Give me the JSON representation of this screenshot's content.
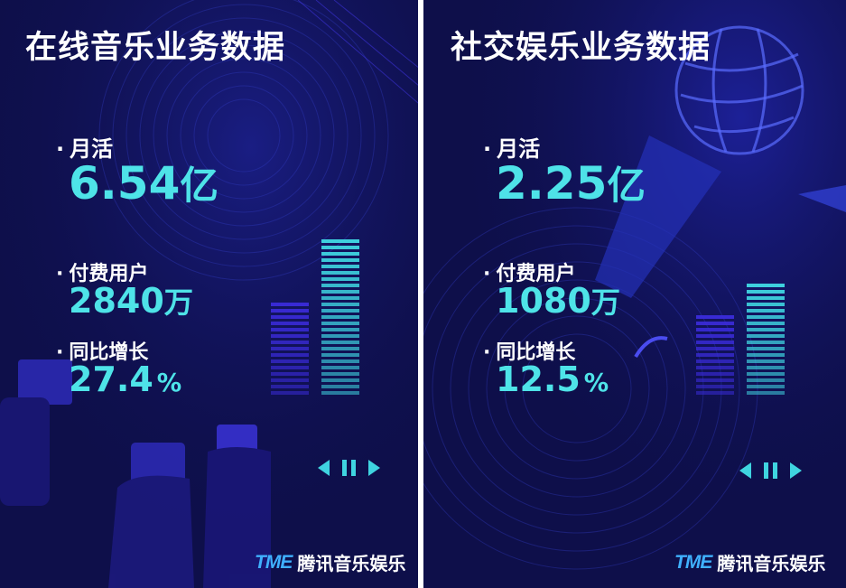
{
  "panels": [
    {
      "title": "在线音乐业务数据",
      "metrics": [
        {
          "label": "月活",
          "value": "6.54",
          "unit": "亿"
        },
        {
          "label": "付费用户",
          "value": "2840",
          "unit": "万"
        },
        {
          "label": "同比增长",
          "value": "27.4",
          "unit": "%"
        }
      ],
      "bars": [
        0.6,
        1.0
      ],
      "brand": {
        "mark": "TME",
        "name": "腾讯音乐娱乐"
      }
    },
    {
      "title": "社交娱乐业务数据",
      "metrics": [
        {
          "label": "月活",
          "value": "2.25",
          "unit": "亿"
        },
        {
          "label": "付费用户",
          "value": "1080",
          "unit": "万"
        },
        {
          "label": "同比增长",
          "value": "12.5",
          "unit": "%"
        }
      ],
      "bars": [
        0.7,
        1.0
      ],
      "brand": {
        "mark": "TME",
        "name": "腾讯音乐娱乐"
      }
    }
  ],
  "colors": {
    "background": "#0e0f4a",
    "accent": "#4ee3e8",
    "bar_dark": "#3a2bd8",
    "bar_light": "#3fd4e0",
    "logo": "#3fb0ff"
  },
  "icons": [
    "prev-icon",
    "pause-icon",
    "next-icon",
    "tme-logo-icon"
  ]
}
